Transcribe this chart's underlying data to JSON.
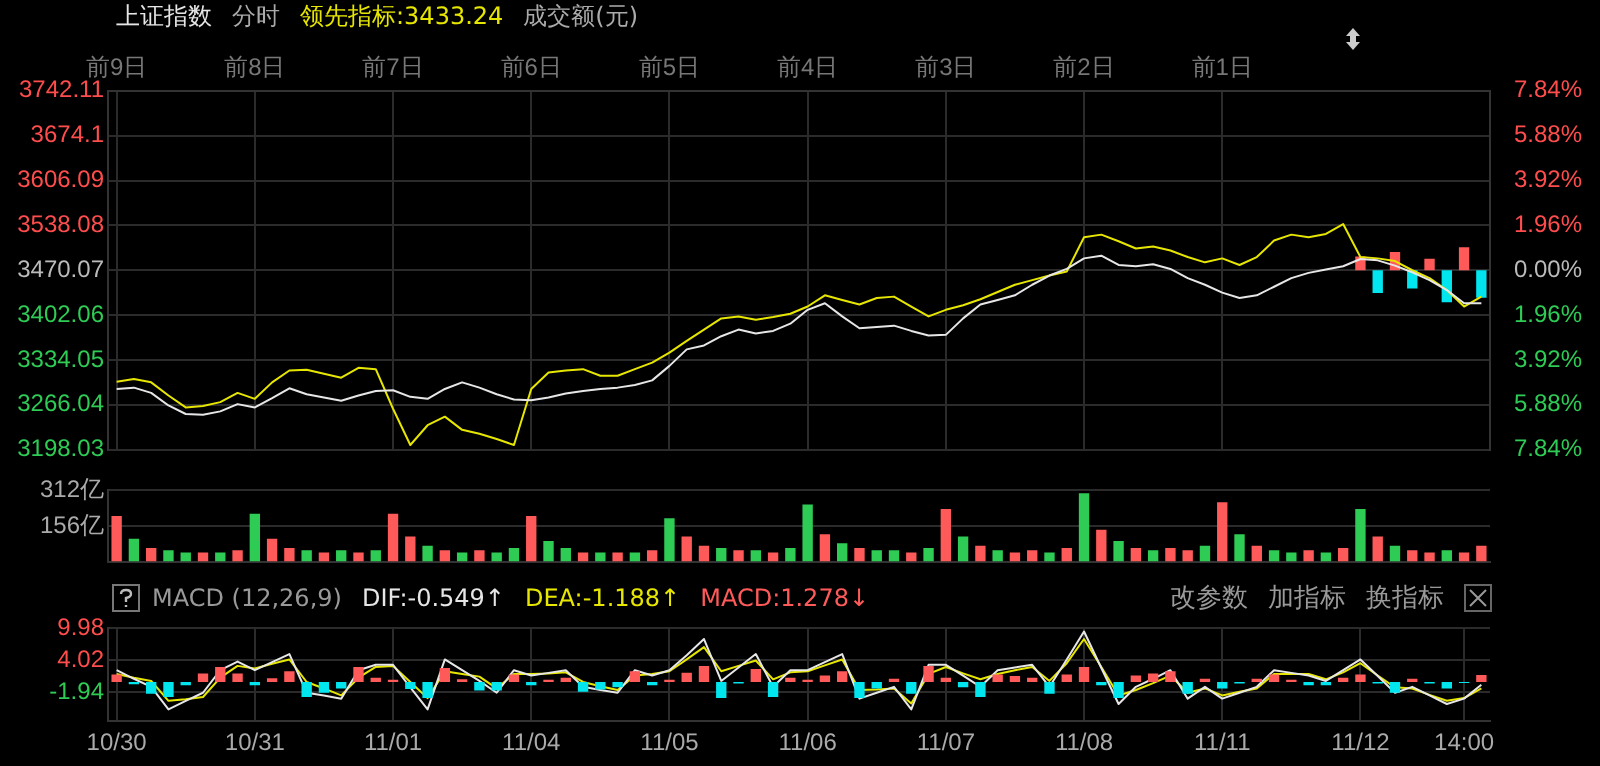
{
  "chart_data": [
    {
      "type": "line",
      "legend": "top left",
      "annotations": [
        "分时",
        "成交额(元)"
      ],
      "categories": [
        "前9日",
        null,
        null,
        null,
        null,
        null,
        null,
        null,
        "前8日",
        null,
        null,
        null,
        null,
        null,
        null,
        null,
        "前7日",
        null,
        null,
        null,
        null,
        null,
        null,
        null,
        "前6日",
        null,
        null,
        null,
        null,
        null,
        null,
        null,
        "前5日",
        null,
        null,
        null,
        null,
        null,
        null,
        null,
        "前4日",
        null,
        null,
        null,
        null,
        null,
        null,
        null,
        "前3日",
        null,
        null,
        null,
        null,
        null,
        null,
        null,
        "前2日",
        null,
        null,
        null,
        null,
        null,
        null,
        null,
        "前1日",
        null,
        null,
        null,
        null,
        null,
        null,
        null,
        null,
        null,
        null,
        null,
        null,
        null,
        null,
        null
      ],
      "ylim": [
        3198.03,
        3742.11
      ],
      "yticks": [
        3198.03,
        3266.04,
        3334.05,
        3402.06,
        3470.07,
        3538.08,
        3606.09,
        3674.1,
        3742.11
      ],
      "y2lim": [
        -7.84,
        7.84
      ],
      "y2ticks": [
        {
          "value": -7.84,
          "label": "7.84%"
        },
        {
          "value": -5.88,
          "label": "5.88%"
        },
        {
          "value": -3.92,
          "label": "3.92%"
        },
        {
          "value": -1.96,
          "label": "1.96%"
        },
        {
          "value": 0,
          "label": "0.00%"
        },
        {
          "value": 1.96,
          "label": "1.96%"
        },
        {
          "value": 3.92,
          "label": "3.92%"
        },
        {
          "value": 5.88,
          "label": "5.88%"
        },
        {
          "value": 7.84,
          "label": "7.84%"
        }
      ],
      "grid": true,
      "series": [
        {
          "name": "上证指数",
          "color": "#e6e6e6",
          "values": [
            3290,
            3292,
            3284,
            3265,
            3252,
            3251,
            3256,
            3267,
            3262,
            3276,
            3291,
            3282,
            3277,
            3272,
            3280,
            3287,
            3288,
            3278,
            3275,
            3290,
            3300,
            3292,
            3282,
            3274,
            3273,
            3277,
            3283,
            3287,
            3290,
            3292,
            3296,
            3303,
            3325,
            3350,
            3356,
            3370,
            3380,
            3374,
            3378,
            3389,
            3410,
            3420,
            3400,
            3382,
            3384,
            3386,
            3378,
            3371,
            3372,
            3397,
            3418,
            3425,
            3432,
            3448,
            3462,
            3472,
            3488,
            3492,
            3478,
            3476,
            3479,
            3472,
            3458,
            3448,
            3436,
            3428,
            3432,
            3445,
            3458,
            3466,
            3471,
            3476,
            3487,
            3485,
            3477,
            3467,
            3455,
            3440,
            3420,
            3420
          ]
        },
        {
          "name": "领先指标:3433.24",
          "color": "#e6e600",
          "values": [
            3301,
            3305,
            3300,
            3280,
            3262,
            3264,
            3270,
            3284,
            3275,
            3300,
            3318,
            3319,
            3313,
            3307,
            3322,
            3320,
            3260,
            3205,
            3235,
            3248,
            3228,
            3222,
            3214,
            3205,
            3290,
            3315,
            3318,
            3320,
            3310,
            3310,
            3320,
            3330,
            3345,
            3363,
            3380,
            3397,
            3400,
            3395,
            3399,
            3404,
            3415,
            3432,
            3425,
            3418,
            3428,
            3430,
            3415,
            3400,
            3410,
            3417,
            3426,
            3437,
            3448,
            3455,
            3462,
            3468,
            3520,
            3524,
            3514,
            3503,
            3506,
            3500,
            3490,
            3482,
            3488,
            3478,
            3490,
            3515,
            3524,
            3520,
            3525,
            3540,
            3490,
            3488,
            3484,
            3470,
            3458,
            3440,
            3415,
            3430
          ]
        },
        {
          "type": "bar",
          "axis": "y2",
          "values": [
            null,
            null,
            null,
            null,
            null,
            null,
            null,
            null,
            null,
            null,
            null,
            null,
            null,
            null,
            null,
            null,
            null,
            null,
            null,
            null,
            null,
            null,
            null,
            null,
            null,
            null,
            null,
            null,
            null,
            null,
            null,
            null,
            null,
            null,
            null,
            null,
            null,
            null,
            null,
            null,
            null,
            null,
            null,
            null,
            null,
            null,
            null,
            null,
            null,
            null,
            null,
            null,
            null,
            null,
            null,
            null,
            null,
            null,
            null,
            null,
            null,
            null,
            null,
            null,
            null,
            null,
            null,
            null,
            null,
            null,
            null,
            null,
            0.6,
            -1.0,
            0.8,
            -0.8,
            0.5,
            -1.4,
            1.0,
            -1.2
          ],
          "colors": [
            null,
            null,
            null,
            null,
            null,
            null,
            null,
            null,
            null,
            null,
            null,
            null,
            null,
            null,
            null,
            null,
            null,
            null,
            null,
            null,
            null,
            null,
            null,
            null,
            null,
            null,
            null,
            null,
            null,
            null,
            null,
            null,
            null,
            null,
            null,
            null,
            null,
            null,
            null,
            null,
            null,
            null,
            null,
            null,
            null,
            null,
            null,
            null,
            null,
            null,
            null,
            null,
            null,
            null,
            null,
            null,
            null,
            null,
            null,
            null,
            null,
            null,
            null,
            null,
            null,
            null,
            null,
            null,
            null,
            null,
            null,
            null,
            "#ff5a5a",
            "#00e5ee",
            "#ff5a5a",
            "#00e5ee",
            "#ff5a5a",
            "#00e5ee",
            "#ff5a5a",
            "#00e5ee"
          ]
        }
      ]
    },
    {
      "type": "bar",
      "categories": [
        null,
        null,
        null,
        null,
        null,
        null,
        null,
        null,
        null,
        null,
        null,
        null,
        null,
        null,
        null,
        null,
        null,
        null,
        null,
        null,
        null,
        null,
        null,
        null,
        null,
        null,
        null,
        null,
        null,
        null,
        null,
        null,
        null,
        null,
        null,
        null,
        null,
        null,
        null,
        null,
        null,
        null,
        null,
        null,
        null,
        null,
        null,
        null,
        null,
        null,
        null,
        null,
        null,
        null,
        null,
        null,
        null,
        null,
        null,
        null,
        null,
        null,
        null,
        null,
        null,
        null,
        null,
        null,
        null,
        null,
        null,
        null,
        null,
        null,
        null,
        null,
        null,
        null,
        null,
        null
      ],
      "ylim": [
        0,
        312
      ],
      "yticks": [
        {
          "value": 156,
          "label": "156亿"
        },
        {
          "value": 312,
          "label": "312亿"
        }
      ],
      "tick_labels": "y",
      "grid": "y",
      "values": [
        200,
        100,
        60,
        50,
        40,
        40,
        40,
        50,
        210,
        100,
        60,
        50,
        40,
        50,
        40,
        50,
        210,
        110,
        70,
        50,
        40,
        50,
        40,
        60,
        200,
        90,
        60,
        40,
        40,
        40,
        40,
        50,
        190,
        110,
        70,
        60,
        50,
        50,
        40,
        60,
        250,
        120,
        80,
        60,
        50,
        50,
        40,
        60,
        230,
        110,
        70,
        50,
        40,
        50,
        40,
        60,
        300,
        140,
        90,
        60,
        50,
        60,
        50,
        70,
        260,
        120,
        70,
        50,
        40,
        50,
        40,
        60,
        230,
        110,
        70,
        50,
        40,
        50,
        40,
        70
      ],
      "colors": [
        "#ff5a5a",
        "#2ecc55",
        "#ff5a5a",
        "#2ecc55",
        "#2ecc55",
        "#ff5a5a",
        "#2ecc55",
        "#ff5a5a",
        "#2ecc55",
        "#ff5a5a",
        "#ff5a5a",
        "#2ecc55",
        "#ff5a5a",
        "#2ecc55",
        "#ff5a5a",
        "#2ecc55",
        "#ff5a5a",
        "#ff5a5a",
        "#2ecc55",
        "#ff5a5a",
        "#2ecc55",
        "#ff5a5a",
        "#2ecc55",
        "#2ecc55",
        "#ff5a5a",
        "#2ecc55",
        "#2ecc55",
        "#ff5a5a",
        "#2ecc55",
        "#ff5a5a",
        "#2ecc55",
        "#ff5a5a",
        "#2ecc55",
        "#ff5a5a",
        "#ff5a5a",
        "#2ecc55",
        "#ff5a5a",
        "#2ecc55",
        "#ff5a5a",
        "#2ecc55",
        "#2ecc55",
        "#ff5a5a",
        "#2ecc55",
        "#ff5a5a",
        "#2ecc55",
        "#2ecc55",
        "#ff5a5a",
        "#2ecc55",
        "#ff5a5a",
        "#2ecc55",
        "#ff5a5a",
        "#2ecc55",
        "#ff5a5a",
        "#ff5a5a",
        "#2ecc55",
        "#ff5a5a",
        "#2ecc55",
        "#ff5a5a",
        "#2ecc55",
        "#ff5a5a",
        "#2ecc55",
        "#ff5a5a",
        "#ff5a5a",
        "#2ecc55",
        "#ff5a5a",
        "#2ecc55",
        "#ff5a5a",
        "#2ecc55",
        "#2ecc55",
        "#ff5a5a",
        "#2ecc55",
        "#ff5a5a",
        "#2ecc55",
        "#ff5a5a",
        "#2ecc55",
        "#ff5a5a",
        "#ff5a5a",
        "#2ecc55",
        "#ff5a5a",
        "#ff5a5a"
      ]
    },
    {
      "type": "bar",
      "title": "MACD (12,26,9)",
      "legend": "top left",
      "annotations": [
        "改参数",
        "加指标",
        "换指标"
      ],
      "categories": [
        "10/30",
        null,
        null,
        null,
        null,
        null,
        null,
        null,
        "10/31",
        null,
        null,
        null,
        null,
        null,
        null,
        null,
        "11/01",
        null,
        null,
        null,
        null,
        null,
        null,
        null,
        "11/04",
        null,
        null,
        null,
        null,
        null,
        null,
        null,
        "11/05",
        null,
        null,
        null,
        null,
        null,
        null,
        null,
        "11/06",
        null,
        null,
        null,
        null,
        null,
        null,
        null,
        "11/07",
        null,
        null,
        null,
        null,
        null,
        null,
        null,
        "11/08",
        null,
        null,
        null,
        null,
        null,
        null,
        null,
        "11/11",
        null,
        null,
        null,
        null,
        null,
        null,
        null,
        "11/12",
        null,
        null,
        null,
        null,
        null,
        "14:00",
        null
      ],
      "ylim": [
        -7.3,
        9.98
      ],
      "yticks": [
        -1.94,
        4.02,
        9.98
      ],
      "grid": true,
      "series": [
        {
          "name": "MACD:1.278↓",
          "color": "#ff5a5a",
          "values": [
            1.4,
            -0.4,
            -2.2,
            -2.8,
            -0.6,
            1.6,
            2.8,
            1.6,
            -0.6,
            0.7,
            2.0,
            -2.8,
            -2.0,
            -1.2,
            2.8,
            0.8,
            0.4,
            -1.3,
            -3.0,
            2.6,
            0.5,
            -1.6,
            -1.6,
            1.4,
            -0.6,
            0.4,
            0.8,
            -1.8,
            -1.4,
            -1.0,
            2.0,
            -0.6,
            0.4,
            1.7,
            3.0,
            -3.0,
            -0.3,
            2.4,
            -2.8,
            0.8,
            0.4,
            1.2,
            2.0,
            -3.0,
            -1.2,
            0.6,
            -2.2,
            3.0,
            0.8,
            -1.0,
            -2.8,
            1.4,
            1.1,
            0.8,
            -2.2,
            1.4,
            2.8,
            -0.6,
            -3.0,
            1.2,
            1.6,
            2.0,
            -2.2,
            0.6,
            -1.2,
            -0.3,
            0.6,
            1.4,
            0.4,
            -0.6,
            -0.6,
            0.8,
            1.4,
            -0.3,
            -2.0,
            0.6,
            -0.3,
            -1.2,
            -0.2,
            1.3
          ],
          "colors": [
            "#ff5a5a",
            "#00e5ee",
            "#00e5ee",
            "#00e5ee",
            "#00e5ee",
            "#ff5a5a",
            "#ff5a5a",
            "#ff5a5a",
            "#00e5ee",
            "#ff5a5a",
            "#ff5a5a",
            "#00e5ee",
            "#00e5ee",
            "#00e5ee",
            "#ff5a5a",
            "#ff5a5a",
            "#ff5a5a",
            "#00e5ee",
            "#00e5ee",
            "#ff5a5a",
            "#ff5a5a",
            "#00e5ee",
            "#00e5ee",
            "#ff5a5a",
            "#00e5ee",
            "#ff5a5a",
            "#ff5a5a",
            "#00e5ee",
            "#00e5ee",
            "#00e5ee",
            "#ff5a5a",
            "#00e5ee",
            "#ff5a5a",
            "#ff5a5a",
            "#ff5a5a",
            "#00e5ee",
            "#00e5ee",
            "#ff5a5a",
            "#00e5ee",
            "#ff5a5a",
            "#ff5a5a",
            "#ff5a5a",
            "#ff5a5a",
            "#00e5ee",
            "#00e5ee",
            "#ff5a5a",
            "#00e5ee",
            "#ff5a5a",
            "#ff5a5a",
            "#00e5ee",
            "#00e5ee",
            "#ff5a5a",
            "#ff5a5a",
            "#ff5a5a",
            "#00e5ee",
            "#ff5a5a",
            "#ff5a5a",
            "#00e5ee",
            "#00e5ee",
            "#ff5a5a",
            "#ff5a5a",
            "#ff5a5a",
            "#00e5ee",
            "#ff5a5a",
            "#00e5ee",
            "#00e5ee",
            "#ff5a5a",
            "#ff5a5a",
            "#ff5a5a",
            "#00e5ee",
            "#00e5ee",
            "#ff5a5a",
            "#ff5a5a",
            "#00e5ee",
            "#00e5ee",
            "#ff5a5a",
            "#00e5ee",
            "#00e5ee",
            "#00e5ee",
            "#ff5a5a"
          ]
        },
        {
          "name": "DIF:-0.549↑",
          "type": "line",
          "color": "#e6e6e6",
          "values": [
            2.2,
            0.6,
            -0.9,
            -5.1,
            -3.5,
            -2.0,
            2.2,
            3.8,
            2.2,
            3.7,
            5.2,
            -2.0,
            -2.5,
            -3.1,
            2.2,
            3.2,
            3.2,
            -1.0,
            -5.1,
            4.2,
            2.2,
            0.2,
            -2.0,
            2.2,
            1.2,
            1.7,
            2.2,
            -0.9,
            -1.5,
            -2.0,
            2.2,
            1.2,
            2.2,
            5.0,
            8.0,
            0.2,
            2.7,
            5.2,
            -0.9,
            2.2,
            2.2,
            3.7,
            5.2,
            -3.1,
            -2.0,
            -0.9,
            -5.1,
            3.2,
            3.2,
            1.2,
            -0.9,
            2.2,
            2.7,
            3.2,
            -0.9,
            4.2,
            9.4,
            2.6,
            -4.1,
            -0.9,
            0.6,
            2.2,
            -3.1,
            -0.9,
            -3.1,
            -2.0,
            -0.9,
            2.2,
            1.7,
            1.2,
            0.2,
            2.2,
            4.2,
            1.1,
            -2.0,
            -0.9,
            -2.5,
            -4.1,
            -3.1,
            -0.5
          ]
        },
        {
          "name": "DEA:-1.188↑",
          "type": "line",
          "color": "#e6e600",
          "values": [
            1.5,
            0.8,
            0.2,
            -3.5,
            -3.2,
            -2.8,
            0.8,
            3.0,
            2.5,
            3.4,
            4.2,
            0.0,
            -1.2,
            -2.5,
            0.8,
            2.8,
            3.0,
            0.0,
            -3.0,
            2.0,
            1.5,
            1.0,
            -1.2,
            1.5,
            1.5,
            1.6,
            1.8,
            0.0,
            -0.8,
            -1.5,
            1.2,
            1.5,
            2.0,
            4.2,
            6.5,
            2.0,
            3.0,
            4.0,
            0.5,
            1.8,
            2.0,
            3.1,
            4.2,
            -1.5,
            -1.4,
            -1.2,
            -4.0,
            1.5,
            2.8,
            1.6,
            0.5,
            1.5,
            2.2,
            2.8,
            0.2,
            3.5,
            8.0,
            2.8,
            -2.5,
            -1.5,
            -0.2,
            1.2,
            -2.0,
            -1.2,
            -2.5,
            -1.8,
            -1.2,
            1.5,
            1.5,
            1.5,
            0.5,
            1.8,
            3.5,
            1.2,
            -1.0,
            -1.2,
            -2.4,
            -3.5,
            -3.0,
            -1.2
          ]
        }
      ]
    }
  ]
}
